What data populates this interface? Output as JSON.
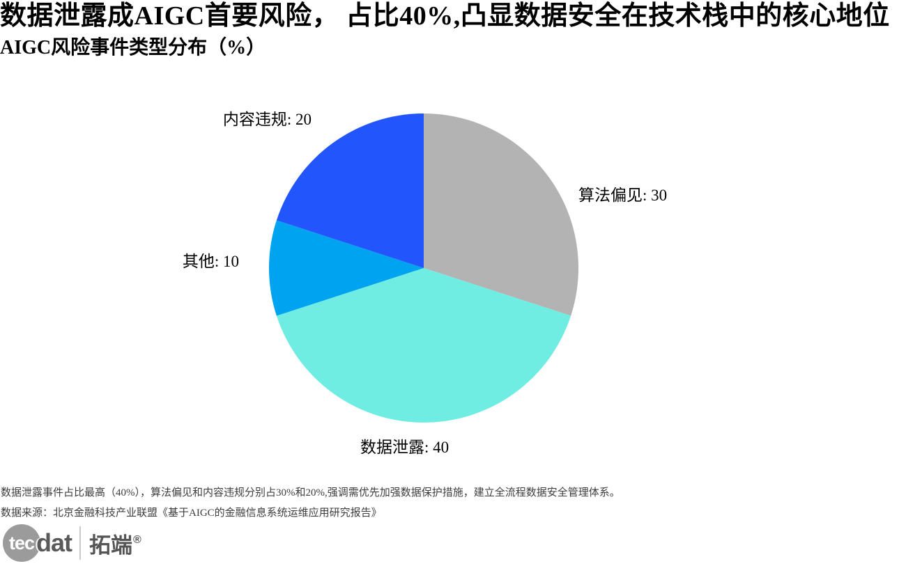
{
  "header": {
    "title": "数据泄露成AIGC首要风险， 占比40%,凸显数据安全在技术栈中的核心地位",
    "subtitle": "AIGC风险事件类型分布（%）"
  },
  "chart_data": {
    "type": "pie",
    "title": "AIGC风险事件类型分布（%）",
    "categories": [
      "算法偏见",
      "数据泄露",
      "其他",
      "内容违规"
    ],
    "values": [
      30,
      40,
      10,
      20
    ],
    "unit": "%",
    "colors": [
      "#b3b3b3",
      "#70ede3",
      "#00a3f0",
      "#2255fb"
    ],
    "slice_names": [
      "algorithm-bias",
      "data-leak",
      "other",
      "content-violation"
    ],
    "point_labels": [
      "算法偏见: 30",
      "数据泄露: 40",
      "其他: 10",
      "内容违规: 20"
    ],
    "start_angle": "top",
    "direction": "clockwise",
    "legend": "none"
  },
  "footer": {
    "note": "数据泄露事件占比最高（40%），算法偏见和内容违规分别占30%和20%,强调需优先加强数据保护措施，建立全流程数据安全管理体系。",
    "source": "数据来源：北京金融科技产业联盟《基于AIGC的金融信息系统运维应用研究报告》"
  },
  "logo": {
    "circle_text": "tec",
    "wordmark": "dat",
    "brand_cn": "拓端",
    "registered_mark": "®",
    "circle_color": "#9b9b9b",
    "text_color": "#595959"
  }
}
